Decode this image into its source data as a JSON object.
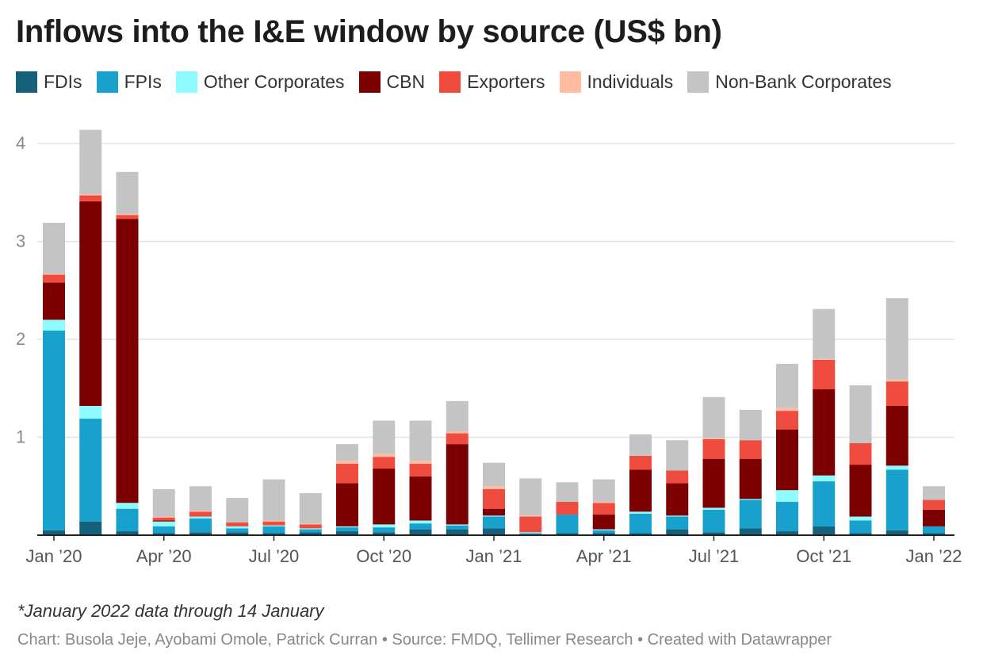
{
  "chart_data": {
    "type": "bar",
    "stacked": true,
    "title": "Inflows into the I&E window by source (US$ bn)",
    "xlabel": "",
    "ylabel": "",
    "ylim": [
      0,
      4.2
    ],
    "y_ticks": [
      "4",
      "3",
      "2",
      "1"
    ],
    "grid": true,
    "legend_position": "top",
    "x_tick_labels": [
      {
        "label": "Jan ’20",
        "index": 0
      },
      {
        "label": "Apr ’20",
        "index": 3
      },
      {
        "label": "Jul ’20",
        "index": 6
      },
      {
        "label": "Oct ’20",
        "index": 9
      },
      {
        "label": "Jan ’21",
        "index": 12
      },
      {
        "label": "Apr ’21",
        "index": 15
      },
      {
        "label": "Jul ’21",
        "index": 18
      },
      {
        "label": "Oct ’21",
        "index": 21
      },
      {
        "label": "Jan ’22",
        "index": 24
      }
    ],
    "categories": [
      "Jan 2020",
      "Feb 2020",
      "Mar 2020",
      "Apr 2020",
      "May 2020",
      "Jun 2020",
      "Jul 2020",
      "Aug 2020",
      "Sep 2020",
      "Oct 2020",
      "Nov 2020",
      "Dec 2020",
      "Jan 2021",
      "Feb 2021",
      "Mar 2021",
      "Apr 2021",
      "May 2021",
      "Jun 2021",
      "Jul 2021",
      "Aug 2021",
      "Sep 2021",
      "Oct 2021",
      "Nov 2021",
      "Dec 2021",
      "Jan 2022"
    ],
    "series": [
      {
        "name": "FDIs",
        "color": "#15607a",
        "values": [
          0.05,
          0.14,
          0.04,
          0.02,
          0.03,
          0.03,
          0.02,
          0.03,
          0.04,
          0.03,
          0.06,
          0.06,
          0.07,
          0.01,
          0.02,
          0.02,
          0.02,
          0.06,
          0.03,
          0.07,
          0.04,
          0.09,
          0.02,
          0.05,
          0.02
        ]
      },
      {
        "name": "FPIs",
        "color": "#18a1cd",
        "values": [
          2.04,
          1.05,
          0.23,
          0.07,
          0.14,
          0.04,
          0.07,
          0.03,
          0.04,
          0.05,
          0.06,
          0.04,
          0.12,
          0.01,
          0.19,
          0.03,
          0.2,
          0.13,
          0.23,
          0.29,
          0.3,
          0.46,
          0.13,
          0.62,
          0.07
        ]
      },
      {
        "name": "Other Corporates",
        "color": "#8dfbff",
        "values": [
          0.11,
          0.13,
          0.06,
          0.05,
          0.02,
          0.02,
          0.01,
          0.01,
          0.01,
          0.03,
          0.03,
          0.01,
          0.01,
          0.01,
          0.0,
          0.01,
          0.02,
          0.01,
          0.02,
          0.01,
          0.12,
          0.06,
          0.04,
          0.04,
          0.0
        ]
      },
      {
        "name": "CBN",
        "color": "#7d0000",
        "values": [
          0.38,
          2.09,
          2.9,
          0.01,
          0.0,
          0.0,
          0.0,
          0.0,
          0.44,
          0.57,
          0.45,
          0.82,
          0.07,
          0.0,
          0.0,
          0.15,
          0.43,
          0.33,
          0.5,
          0.41,
          0.62,
          0.88,
          0.53,
          0.61,
          0.17
        ]
      },
      {
        "name": "Exporters",
        "color": "#f04b3f",
        "values": [
          0.08,
          0.06,
          0.04,
          0.03,
          0.05,
          0.04,
          0.04,
          0.04,
          0.2,
          0.12,
          0.13,
          0.11,
          0.2,
          0.16,
          0.13,
          0.12,
          0.14,
          0.13,
          0.2,
          0.19,
          0.19,
          0.3,
          0.22,
          0.25,
          0.1
        ]
      },
      {
        "name": "Individuals",
        "color": "#ffbca0",
        "values": [
          0.01,
          0.01,
          0.01,
          0.01,
          0.01,
          0.0,
          0.01,
          0.01,
          0.03,
          0.03,
          0.03,
          0.02,
          0.03,
          0.01,
          0.0,
          0.01,
          0.0,
          0.0,
          0.01,
          0.0,
          0.03,
          0.01,
          0.0,
          0.02,
          0.0
        ]
      },
      {
        "name": "Non-Bank Corporates",
        "color": "#c4c4c4",
        "values": [
          0.52,
          0.66,
          0.43,
          0.28,
          0.25,
          0.25,
          0.42,
          0.31,
          0.17,
          0.34,
          0.41,
          0.31,
          0.24,
          0.38,
          0.2,
          0.23,
          0.22,
          0.31,
          0.42,
          0.31,
          0.45,
          0.51,
          0.59,
          0.83,
          0.14
        ]
      }
    ]
  },
  "footer": {
    "note": "*January 2022 data through 14 January",
    "credit": "Chart: Busola Jeje, Ayobami Omole, Patrick Curran • Source: FMDQ, Tellimer Research • Created with Datawrapper"
  }
}
